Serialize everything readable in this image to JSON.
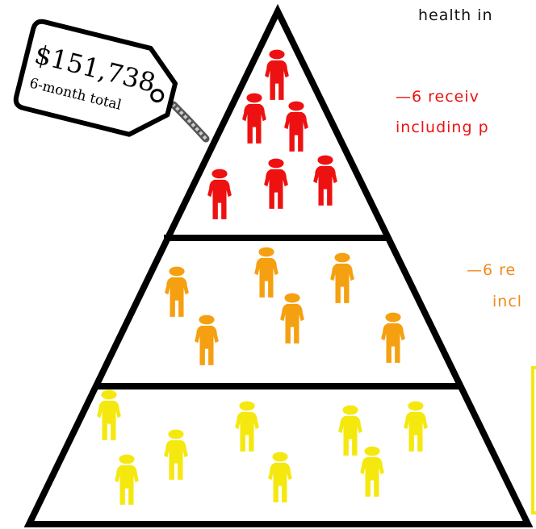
{
  "header": {
    "text": "health in"
  },
  "tag": {
    "amount": "$151,738",
    "label": "6-month total"
  },
  "tiers": [
    {
      "lines": [
        "—6 receiv",
        "including p"
      ]
    },
    {
      "lines": [
        "—6 re",
        "incl"
      ]
    }
  ]
}
